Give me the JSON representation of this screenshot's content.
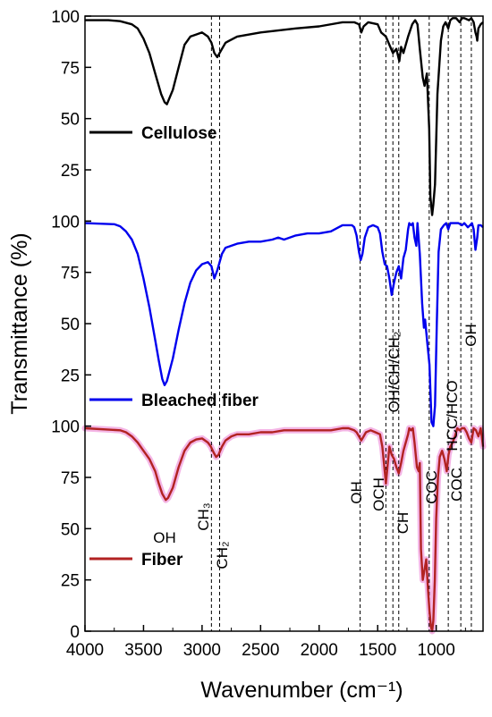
{
  "chart_data": {
    "type": "line",
    "xlabel": "Wavenumber (cm⁻¹)",
    "ylabel": "Transmittance (%)",
    "xlim": [
      4000,
      600
    ],
    "x_reversed": true,
    "x_ticks": [
      4000,
      3500,
      3000,
      2500,
      2000,
      1500,
      1000
    ],
    "panel_ticks": [
      0,
      25,
      50,
      75,
      100
    ],
    "panels": [
      {
        "name": "Fiber",
        "color": "#b22222",
        "highlight": "#f4b6e6",
        "ticks": [
          "0",
          "25",
          "50",
          "75",
          "100"
        ]
      },
      {
        "name": "Bleached fiber",
        "color": "#0000ee",
        "ticks": [
          "",
          "25",
          "50",
          "75",
          "100"
        ]
      },
      {
        "name": "Cellulose",
        "color": "#000000",
        "ticks": [
          "",
          "25",
          "50",
          "75",
          "100"
        ]
      }
    ],
    "series": [
      {
        "name": "Cellulose",
        "x": [
          4000,
          3800,
          3700,
          3600,
          3550,
          3500,
          3450,
          3400,
          3350,
          3320,
          3300,
          3250,
          3200,
          3150,
          3100,
          3050,
          3000,
          2950,
          2920,
          2895,
          2870,
          2850,
          2800,
          2700,
          2500,
          2350,
          2200,
          2000,
          1800,
          1700,
          1660,
          1640,
          1620,
          1580,
          1500,
          1470,
          1430,
          1400,
          1370,
          1340,
          1315,
          1300,
          1280,
          1240,
          1205,
          1180,
          1160,
          1140,
          1115,
          1100,
          1080,
          1060,
          1050,
          1035,
          1025,
          1010,
          990,
          960,
          940,
          920,
          897,
          880,
          860,
          830,
          800,
          780,
          760,
          720,
          700,
          680,
          665,
          655,
          650,
          640,
          620,
          600
        ],
        "y": [
          98,
          98,
          97.5,
          96,
          94,
          89,
          82,
          72,
          62,
          58,
          57,
          64,
          75,
          86,
          90,
          91,
          92,
          90,
          87,
          82,
          80,
          82,
          87,
          90,
          92,
          93,
          94,
          95,
          97,
          97,
          96,
          92,
          95,
          97,
          96,
          92,
          90,
          86,
          82,
          84,
          78,
          85,
          82,
          90,
          96,
          98,
          96,
          84,
          70,
          66,
          72,
          45,
          12,
          3,
          8,
          18,
          62,
          88,
          95,
          97,
          94,
          98,
          99,
          99,
          97,
          99,
          99,
          98,
          99,
          97,
          92,
          90,
          88,
          94,
          96,
          97
        ]
      },
      {
        "name": "Bleached fiber",
        "x": [
          4000,
          3750,
          3700,
          3650,
          3600,
          3550,
          3500,
          3450,
          3400,
          3370,
          3340,
          3320,
          3300,
          3250,
          3200,
          3150,
          3100,
          3050,
          3000,
          2950,
          2920,
          2895,
          2870,
          2830,
          2800,
          2750,
          2700,
          2600,
          2500,
          2400,
          2350,
          2300,
          2200,
          2100,
          2000,
          1900,
          1800,
          1720,
          1700,
          1680,
          1660,
          1645,
          1630,
          1610,
          1580,
          1540,
          1500,
          1480,
          1460,
          1440,
          1420,
          1400,
          1380,
          1360,
          1340,
          1320,
          1300,
          1280,
          1260,
          1240,
          1230,
          1215,
          1200,
          1185,
          1170,
          1160,
          1140,
          1120,
          1105,
          1095,
          1075,
          1058,
          1040,
          1025,
          1010,
          995,
          980,
          960,
          935,
          915,
          897,
          880,
          860,
          840,
          810,
          780,
          760,
          730,
          710,
          695,
          680,
          665,
          650,
          640,
          620,
          600
        ],
        "y": [
          99,
          98.5,
          97.5,
          95,
          91,
          84,
          72,
          58,
          42,
          32,
          23,
          20,
          22,
          33,
          47,
          60,
          70,
          76,
          79,
          80,
          78,
          72,
          76,
          84,
          87,
          88,
          89,
          90,
          90,
          91,
          92,
          91,
          93,
          94,
          94,
          95,
          98,
          98,
          97,
          93,
          85,
          81,
          84,
          92,
          97,
          98,
          97,
          94,
          85,
          79,
          78,
          72,
          64,
          70,
          75,
          78,
          72,
          82,
          86,
          96,
          99,
          98,
          99,
          92,
          88,
          99,
          84,
          60,
          48,
          52,
          40,
          30,
          2,
          0,
          10,
          50,
          85,
          96,
          98,
          99,
          96,
          99,
          99,
          99,
          99,
          98,
          99,
          97,
          98,
          99,
          96,
          86,
          92,
          98,
          98,
          97
        ]
      },
      {
        "name": "Fiber",
        "x": [
          4000,
          3700,
          3650,
          3600,
          3550,
          3500,
          3450,
          3400,
          3370,
          3340,
          3310,
          3290,
          3250,
          3200,
          3150,
          3100,
          3050,
          3000,
          2950,
          2925,
          2900,
          2880,
          2860,
          2830,
          2800,
          2750,
          2700,
          2600,
          2500,
          2400,
          2300,
          2200,
          2100,
          2000,
          1900,
          1800,
          1750,
          1700,
          1680,
          1660,
          1640,
          1620,
          1600,
          1560,
          1520,
          1480,
          1460,
          1440,
          1430,
          1420,
          1400,
          1380,
          1360,
          1340,
          1320,
          1300,
          1280,
          1260,
          1240,
          1230,
          1215,
          1200,
          1185,
          1165,
          1150,
          1140,
          1130,
          1115,
          1100,
          1085,
          1070,
          1058,
          1045,
          1035,
          1025,
          1012,
          1000,
          985,
          970,
          950,
          930,
          910,
          895,
          880,
          860,
          840,
          820,
          800,
          780,
          760,
          740,
          720,
          700,
          680,
          660,
          640,
          620,
          600
        ],
        "y": [
          99,
          98,
          97,
          95,
          92,
          88,
          84,
          78,
          72,
          67,
          64,
          65,
          70,
          80,
          88,
          92,
          93.5,
          94,
          92,
          90,
          87,
          85,
          86,
          90,
          93,
          95,
          96,
          96,
          97,
          97,
          98,
          98,
          98,
          98,
          98,
          99,
          99,
          98,
          97,
          95,
          93,
          95,
          97,
          98,
          97,
          96,
          90,
          78,
          72,
          78,
          90,
          86,
          84,
          80,
          77,
          82,
          88,
          92,
          96,
          99,
          98,
          99,
          92,
          80,
          78,
          82,
          40,
          25,
          30,
          35,
          20,
          10,
          2,
          0,
          5,
          25,
          55,
          75,
          85,
          88,
          84,
          78,
          86,
          90,
          92,
          95,
          99,
          98,
          99,
          99,
          97,
          94,
          92,
          99,
          98,
          95,
          99,
          90
        ]
      }
    ],
    "dashed_lines_x": [
      2920,
      2850,
      1650,
      1430,
      1370,
      1320,
      1060,
      897,
      790,
      700
    ],
    "legend": {
      "placement": "per-panel, left",
      "entries": [
        "Cellulose",
        "Bleached fiber",
        "Fiber"
      ]
    },
    "annotations": {
      "oh_3400": "OH",
      "ch3": "CH₃",
      "ch2": "CH₂",
      "oh_1650": "OH",
      "och": "OCH",
      "ch": "CH",
      "oh_ch_ch2": "OH/CH/CH₂",
      "coc_1060": "COC",
      "hcc_hco": "HCC/HCO",
      "coc_790": "COC",
      "oh_700": "OH"
    }
  }
}
